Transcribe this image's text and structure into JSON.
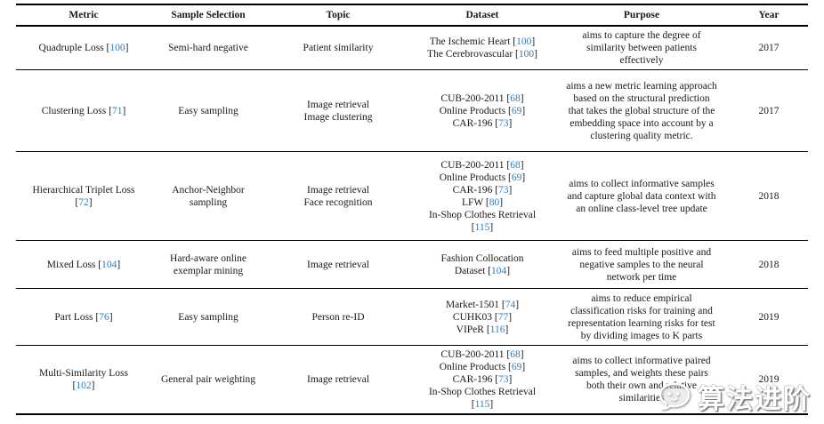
{
  "table": {
    "columns": [
      "Metric",
      "Sample Selection",
      "Topic",
      "Dataset",
      "Purpose",
      "Year"
    ],
    "rows": [
      {
        "metric": "Quadruple Loss [100]",
        "sample_selection": "Semi-hard negative",
        "topic": "Patient similarity",
        "dataset": "The Ischemic Heart [100]\nThe Cerebrovascular [100]",
        "purpose": "aims to capture the degree of\nsimilarity between patients\neffectively",
        "year": "2017"
      },
      {
        "metric": "Clustering Loss [71]",
        "sample_selection": "Easy sampling",
        "topic": "Image retrieval\nImage clustering",
        "dataset": "CUB-200-2011 [68]\nOnline Products [69]\nCAR-196 [73]",
        "purpose": "aims a new metric learning approach\nbased on the structural prediction\nthat takes the global structure of the\nembedding space into account by a\nclustering quality metric.",
        "year": "2017"
      },
      {
        "metric": "Hierarchical Triplet Loss\n[72]",
        "sample_selection": "Anchor-Neighbor\nsampling",
        "topic": "Image retrieval\nFace recognition",
        "dataset": "CUB-200-2011 [68]\nOnline Products [69]\nCAR-196 [73]\nLFW [80]\nIn-Shop Clothes Retrieval\n[115]",
        "purpose": "aims to collect informative samples\nand capture global data context with\nan online class-level tree update",
        "year": "2018"
      },
      {
        "metric": "Mixed Loss [104]",
        "sample_selection": "Hard-aware online\nexemplar mining",
        "topic": "Image retrieval",
        "dataset": "Fashion Collocation\nDataset [104]",
        "purpose": "aims to feed multiple positive and\nnegative samples to the neural\nnetwork per time",
        "year": "2018"
      },
      {
        "metric": "Part Loss [76]",
        "sample_selection": "Easy sampling",
        "topic": "Person re-ID",
        "dataset": "Market-1501 [74]\nCUHK03 [77]\nVIPeR [116]",
        "purpose": "aims to reduce empirical\nclassification risks for training and\nrepresentation learning risks for test\nby dividing images to K parts",
        "year": "2019"
      },
      {
        "metric": "Multi-Similarity Loss\n[102]",
        "sample_selection": "General pair weighting",
        "topic": "Image retrieval",
        "dataset": "CUB-200-2011 [68]\nOnline Products [69]\nCAR-196 [73]\nIn-Shop Clothes Retrieval\n[115]",
        "purpose": "aims to collect informative paired\nsamples, and weights these pairs\nboth their own and relative\nsimilarities",
        "year": "2019"
      }
    ]
  },
  "watermark": {
    "text": "算法进阶",
    "icon": "chat-bubble-face-icon"
  },
  "colors": {
    "citation_blue": "#2f7cbe",
    "rule_black": "#000000",
    "watermark_white": "#ffffff"
  }
}
